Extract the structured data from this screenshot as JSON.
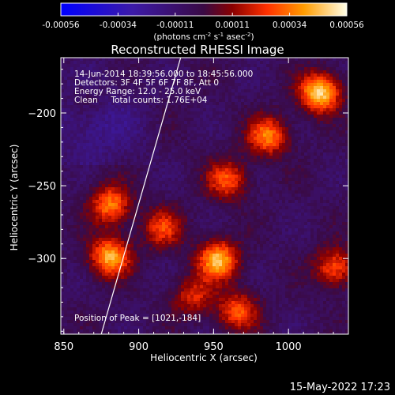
{
  "chart_data": {
    "type": "heatmap",
    "title": "Reconstructed RHESSI Image",
    "xlabel": "Heliocentric X (arcsec)",
    "ylabel": "Heliocentric Y (arcsec)",
    "xlim": [
      848,
      1040
    ],
    "ylim": [
      -352,
      -162
    ],
    "x_ticks": [
      850,
      900,
      950,
      1000
    ],
    "y_ticks": [
      -200,
      -250,
      -300
    ],
    "colorbar": {
      "ticks": [
        "-0.00056",
        "-0.00034",
        "-0.00011",
        "0.00011",
        "0.00034",
        "0.00056"
      ],
      "label_text": "(photons cm",
      "label_exp1": "-2",
      "label_mid1": " s",
      "label_exp2": "-1",
      "label_mid2": " asec",
      "label_exp3": "-2",
      "label_end": ")",
      "range": [
        -0.00056,
        0.00056
      ]
    },
    "annotations": [
      "14-Jun-2014 18:39:56.000 to 18:45:56.000",
      "Detectors: 3F 4F 5F 6F 7F 8F, Att 0",
      "Energy Range: 12.0 - 25.0 keV",
      "Clean     Total counts: 1.76E+04",
      "Position of Peak = [1021,-184]"
    ],
    "limb_line": {
      "x": [
        875,
        928
      ],
      "y": [
        -352,
        -162
      ]
    },
    "sources": [
      {
        "x": 1020,
        "y": -185,
        "amplitude": 0.00056
      },
      {
        "x": 985,
        "y": -215,
        "amplitude": 0.0004
      },
      {
        "x": 958,
        "y": -245,
        "amplitude": 0.00034
      },
      {
        "x": 952,
        "y": -300,
        "amplitude": 0.0005
      },
      {
        "x": 965,
        "y": -335,
        "amplitude": 0.00034
      },
      {
        "x": 880,
        "y": -262,
        "amplitude": 0.0004
      },
      {
        "x": 880,
        "y": -298,
        "amplitude": 0.00048
      },
      {
        "x": 915,
        "y": -278,
        "amplitude": 0.0003
      },
      {
        "x": 1030,
        "y": -305,
        "amplitude": 0.00034
      },
      {
        "x": 865,
        "y": -190,
        "amplitude": 0.00011
      },
      {
        "x": 935,
        "y": -325,
        "amplitude": 0.00026
      }
    ]
  },
  "footer": {
    "timestamp": "15-May-2022 17:23"
  }
}
